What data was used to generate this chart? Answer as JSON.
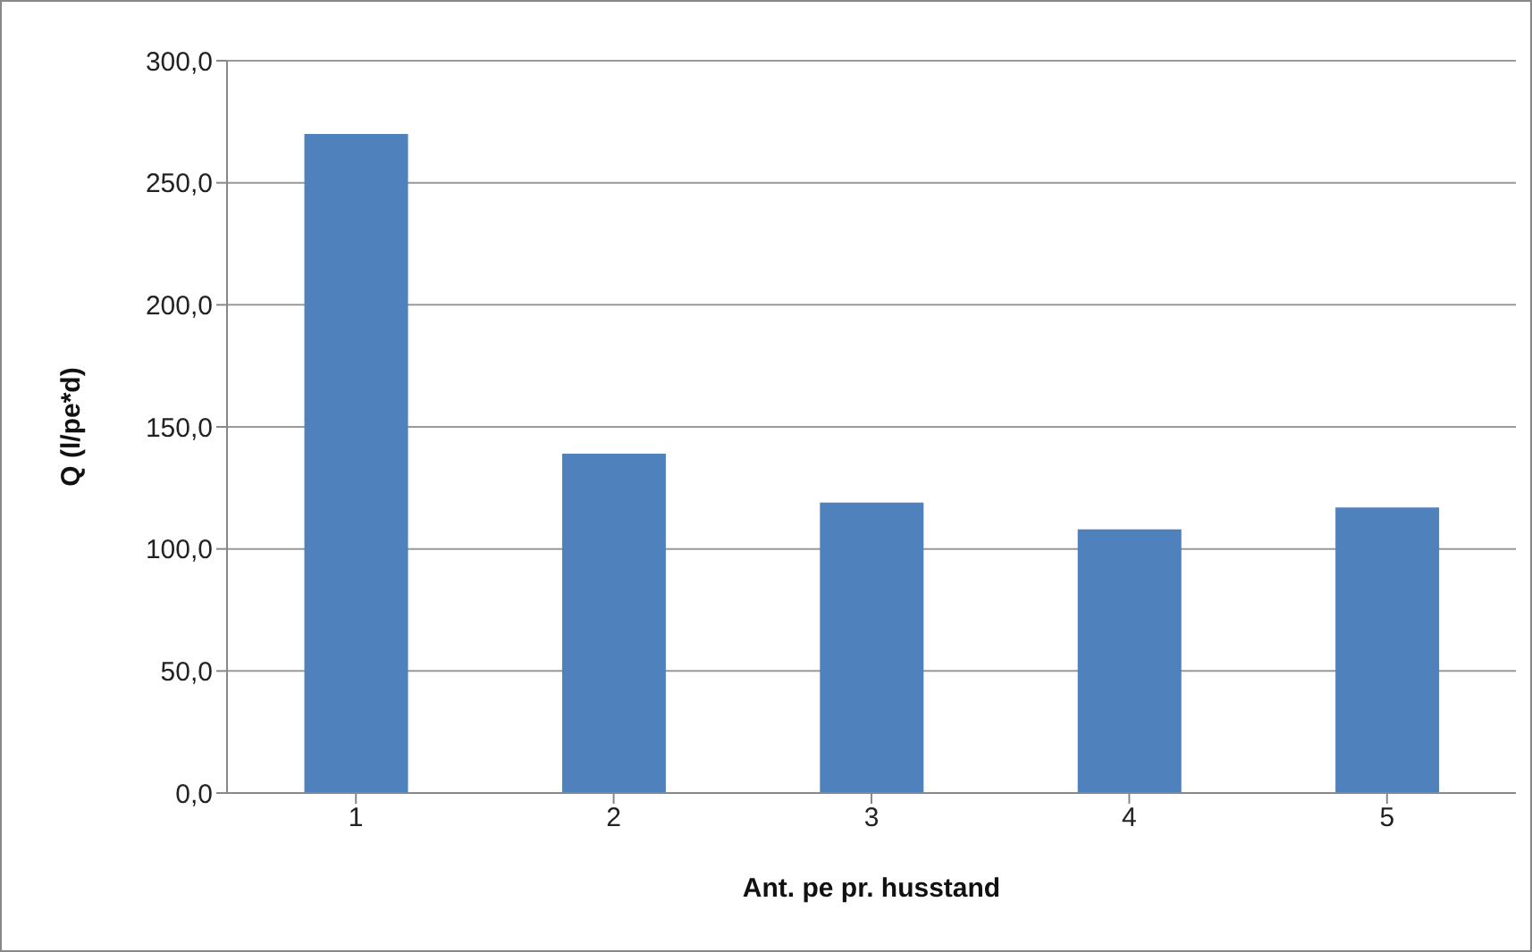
{
  "chart_data": {
    "type": "bar",
    "xlabel": "Ant. pe pr. husstand",
    "ylabel": "Q (l/pe*d)",
    "categories": [
      "1",
      "2",
      "3",
      "4",
      "5"
    ],
    "values": [
      270,
      139,
      119,
      108,
      117
    ],
    "color": "#4f81bd",
    "ylim": [
      0,
      300
    ],
    "yticks": [
      {
        "value": 0,
        "label": "0,0"
      },
      {
        "value": 50,
        "label": "50,0"
      },
      {
        "value": 100,
        "label": "100,0"
      },
      {
        "value": 150,
        "label": "150,0"
      },
      {
        "value": 200,
        "label": "200,0"
      },
      {
        "value": 250,
        "label": "250,0"
      },
      {
        "value": 300,
        "label": "300,0"
      }
    ],
    "grid": "y"
  }
}
